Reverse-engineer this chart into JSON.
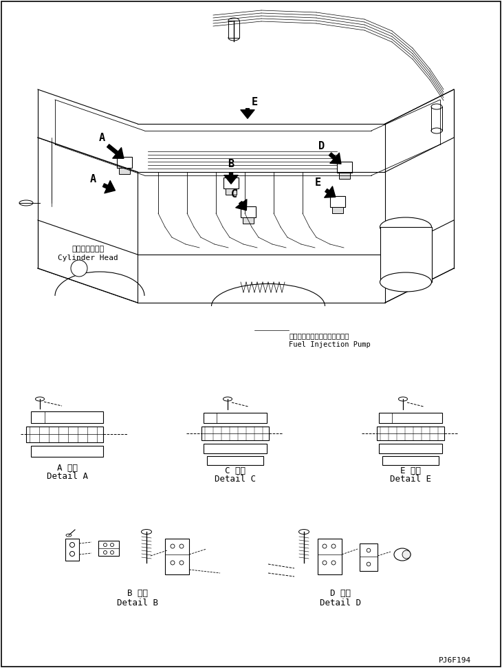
{
  "title": "",
  "background_color": "#ffffff",
  "fig_width": 7.3,
  "fig_height": 9.71,
  "dpi": 100,
  "labels": {
    "cylinder_head_jp": "シリンダヘッド",
    "cylinder_head_en": "Cylinder Head",
    "fuel_pump_jp": "フェルインジェクションポンプ",
    "fuel_pump_en": "Fuel Injection Pump",
    "detail_a_jp": "A 詳細",
    "detail_a_en": "Detail A",
    "detail_b_jp": "B 詳細",
    "detail_b_en": "Detail B",
    "detail_c_jp": "C 詳細",
    "detail_c_en": "Detail C",
    "detail_d_jp": "D 詳細",
    "detail_d_en": "Detail D",
    "detail_e_jp": "E 詳細",
    "detail_e_en": "Detail E",
    "part_number": "PJ6F194"
  },
  "line_color": "#000000",
  "text_color": "#000000",
  "font_size_label": 8,
  "font_size_small": 7
}
